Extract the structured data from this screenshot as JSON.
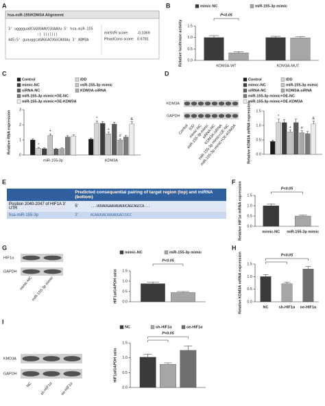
{
  "panel_labels": [
    "A",
    "B",
    "C",
    "D",
    "E",
    "F",
    "G",
    "H",
    "I"
  ],
  "alignment": {
    "title": "hsa-miR-155/KDM3A Alignment",
    "lines": [
      "3' ugggguaUCGGUUAAUCGUAAUu 5' hsa-miR-155",
      "              :| |||||||",
      "445:5' guauggcaUAGGACUGGCAUUAu 3' KDM3A"
    ],
    "scores": [
      {
        "label": "mirSVR score:",
        "value": -0.1069
      },
      {
        "label": "PhastCons score:",
        "value": 0.6781
      }
    ]
  },
  "pairing": {
    "header": "Predicted consequential pairing of target region (top) and miRNA (bottom)",
    "rows": [
      [
        "Position 2040-2047 of HIF1A 3' UTR",
        "5'",
        "...UUUAUGAAUAUAUUCAGCAGCCA..."
      ],
      [
        "hsa-miR-155-3p",
        "3'",
        "ACAAUUACAUUAUGACCUCC"
      ]
    ]
  },
  "blots": [
    {
      "rows": [
        "KDM3A",
        "GAPDH"
      ],
      "lanes": [
        "Control",
        "IDD",
        "mimic-NC",
        "miR-155-3p mimic",
        "siRNA-NC",
        "KDM3A-siRNA",
        "miR-155-3p mimic+OE-NC",
        "miR-155-3p mimic+OE-KDM3A"
      ]
    },
    {
      "rows": [
        "HIF1α",
        "GAPDH"
      ],
      "lanes": [
        "mimic-NC",
        "miR-155-3p mimic"
      ]
    },
    {
      "rows": [
        "KMD3A",
        "GAPDH"
      ],
      "lanes": [
        "NC",
        "sh-HIF1α",
        "oe-HIF1α"
      ]
    }
  ],
  "chart_data": [
    {
      "type": "bar",
      "ylabel": "Relative luciferase activity",
      "categories": [
        "KDM3A-WT",
        "KDM3A-MUT"
      ],
      "series": [
        {
          "name": "mimic NC",
          "color": "#3a3a3a",
          "values": [
            1.0,
            1.0
          ],
          "errors": [
            0.08,
            0.05
          ]
        },
        {
          "name": "miR-155-3p mimic",
          "color": "#a6a6a6",
          "values": [
            0.33,
            0.98
          ],
          "errors": [
            0.05,
            0.06
          ]
        }
      ],
      "ylim": [
        0,
        1.5
      ],
      "yticks": [
        {
          "value": 0,
          "label": "0.0"
        },
        {
          "value": 0.5,
          "label": "0.5"
        },
        {
          "value": 1,
          "label": "1.0"
        },
        {
          "value": 1.5,
          "label": "1.5"
        }
      ],
      "annotation": "P<0.05"
    },
    {
      "type": "bar",
      "ylabel": "Relative RNA expression",
      "categories": [
        "miR-155-3p",
        "KDM3A"
      ],
      "series": [
        {
          "name": "Control",
          "color": "#1a1a1a",
          "values": [
            1.0,
            1.05
          ],
          "errors": [
            0.06,
            0.08
          ],
          "significance": [
            null,
            null
          ]
        },
        {
          "name": "IDD",
          "color": "#d4d4d4",
          "values": [
            0.45,
            2.1
          ],
          "errors": [
            0.05,
            0.15
          ],
          "significance": [
            "*",
            "*"
          ]
        },
        {
          "name": "mimic-NC",
          "color": "#3d3d3d",
          "values": [
            0.42,
            2.1
          ],
          "errors": [
            0.05,
            0.12
          ],
          "significance": [
            null,
            null
          ]
        },
        {
          "name": "miR-155-3p mimic",
          "color": "#c4c4c4",
          "values": [
            1.3,
            1.4
          ],
          "errors": [
            0.1,
            0.12
          ],
          "significance": [
            "+",
            "+"
          ]
        },
        {
          "name": "siRNA-NC",
          "color": "#5a5a5a",
          "values": [
            0.4,
            2.05
          ],
          "errors": [
            0.05,
            0.12
          ],
          "significance": [
            null,
            null
          ]
        },
        {
          "name": "KDM3A-siRNA",
          "color": "#a8a8a8",
          "values": [
            0.42,
            1.0
          ],
          "errors": [
            0.05,
            0.08
          ],
          "significance": [
            null,
            "#"
          ]
        },
        {
          "name": "miR-155-3p mimic+OE-NC",
          "color": "#7a7a7a",
          "values": [
            1.2,
            1.2
          ],
          "errors": [
            0.08,
            0.1
          ],
          "significance": [
            null,
            null
          ]
        },
        {
          "name": "miR-155-3p mimic+OE-KDM3A",
          "color": "#ececec",
          "values": [
            1.25,
            2.05
          ],
          "errors": [
            0.08,
            0.15
          ],
          "significance": [
            null,
            "&"
          ]
        }
      ],
      "ylim": [
        0,
        3
      ],
      "yticks": [
        0,
        1,
        2,
        3
      ]
    },
    {
      "type": "bar",
      "ylabel": "Relative KDM3A mRNA expression",
      "series": [
        {
          "name": "Control",
          "color": "#1a1a1a",
          "values": [
            0.45
          ],
          "errors": [
            0.04
          ],
          "significance": [
            null
          ]
        },
        {
          "name": "IDD",
          "color": "#d4d4d4",
          "values": [
            1.1
          ],
          "errors": [
            0.12
          ],
          "significance": [
            "*"
          ]
        },
        {
          "name": "mimic-NC",
          "color": "#3d3d3d",
          "values": [
            1.1
          ],
          "errors": [
            0.1
          ],
          "significance": [
            null
          ]
        },
        {
          "name": "miR-155-3p mimic",
          "color": "#c4c4c4",
          "values": [
            0.78
          ],
          "errors": [
            0.07
          ],
          "significance": [
            "+"
          ]
        },
        {
          "name": "siRNA-NC",
          "color": "#5a5a5a",
          "values": [
            1.1
          ],
          "errors": [
            0.12
          ],
          "significance": [
            null
          ]
        },
        {
          "name": "KDM3A-siRNA",
          "color": "#a8a8a8",
          "values": [
            0.75
          ],
          "errors": [
            0.07
          ],
          "significance": [
            "#"
          ]
        },
        {
          "name": "miR-155-3p mimic+OE-NC",
          "color": "#7a7a7a",
          "values": [
            0.72
          ],
          "errors": [
            0.07
          ],
          "significance": [
            null
          ]
        },
        {
          "name": "miR-155-3p mimic+OE-KDM3A",
          "color": "#ececec",
          "values": [
            1.05
          ],
          "errors": [
            0.1
          ],
          "significance": [
            "&"
          ]
        }
      ],
      "ylim": [
        0,
        1.5
      ],
      "yticks": [
        {
          "value": 0,
          "label": "0.0"
        },
        {
          "value": 0.5,
          "label": "0.5"
        },
        {
          "value": 1,
          "label": "1.0"
        },
        {
          "value": 1.5,
          "label": "1.5"
        }
      ]
    },
    {
      "type": "bar",
      "ylabel": "Relative HIF1α mRNA expression",
      "categories": [
        "mimic-NC",
        "miR-155-3p mimic"
      ],
      "values": [
        1.0,
        0.5
      ],
      "errors": [
        0.08,
        0.04
      ],
      "colors": [
        "#3a3a3a",
        "#a6a6a6"
      ],
      "ylim": [
        0,
        1.5
      ],
      "yticks": [
        {
          "value": 0,
          "label": "0.0"
        },
        {
          "value": 0.5,
          "label": "0.5"
        },
        {
          "value": 1,
          "label": "1.0"
        },
        {
          "value": 1.5,
          "label": "1.5"
        }
      ],
      "annotation": "P<0.05"
    },
    {
      "type": "bar",
      "ylabel": "HIF1α/GAPDH ratio",
      "series": [
        {
          "name": "mimic-NC",
          "color": "#3a3a3a",
          "values": [
            0.88
          ],
          "errors": [
            0.08
          ]
        },
        {
          "name": "miR-155-3p mimic",
          "color": "#a6a6a6",
          "values": [
            0.45
          ],
          "errors": [
            0.05
          ]
        }
      ],
      "ylim": [
        0,
        1.5
      ],
      "yticks": [
        {
          "value": 0,
          "label": "0.0"
        },
        {
          "value": 0.5,
          "label": "0.5"
        },
        {
          "value": 1,
          "label": "1.0"
        },
        {
          "value": 1.5,
          "label": "1.5"
        }
      ],
      "annotation": "P<0.05"
    },
    {
      "type": "bar",
      "ylabel": "Relative KDM3A mRNA expression",
      "categories": [
        "NC",
        "sh-HIF1α",
        "oe-HIF1α"
      ],
      "values": [
        1.0,
        0.72,
        1.3
      ],
      "errors": [
        0.08,
        0.06,
        0.1
      ],
      "colors": [
        "#3a3a3a",
        "#a6a6a6",
        "#6e6e6e"
      ],
      "ylim": [
        0,
        1.5
      ],
      "yticks": [
        {
          "value": 0,
          "label": "0.0"
        },
        {
          "value": 0.5,
          "label": "0.5"
        },
        {
          "value": 1,
          "label": "1.0"
        },
        {
          "value": 1.5,
          "label": "1.5"
        }
      ],
      "annotation": "P<0.05"
    },
    {
      "type": "bar",
      "ylabel": "HIF1α/GAPDH ratio",
      "series": [
        {
          "name": "NC",
          "color": "#3a3a3a",
          "values": [
            1.02
          ],
          "errors": [
            0.1
          ]
        },
        {
          "name": "sh-HIF1α",
          "color": "#a6a6a6",
          "values": [
            0.78
          ],
          "errors": [
            0.05
          ]
        },
        {
          "name": "oe-HIF1α",
          "color": "#6e6e6e",
          "values": [
            1.25
          ],
          "errors": [
            0.15
          ]
        }
      ],
      "ylim": [
        0,
        1.5
      ],
      "yticks": [
        {
          "value": 0,
          "label": "0.0"
        },
        {
          "value": 0.5,
          "label": "0.5"
        },
        {
          "value": 1,
          "label": "1.0"
        },
        {
          "value": 1.5,
          "label": "1.5"
        }
      ],
      "annotation": "P<0.05"
    }
  ]
}
